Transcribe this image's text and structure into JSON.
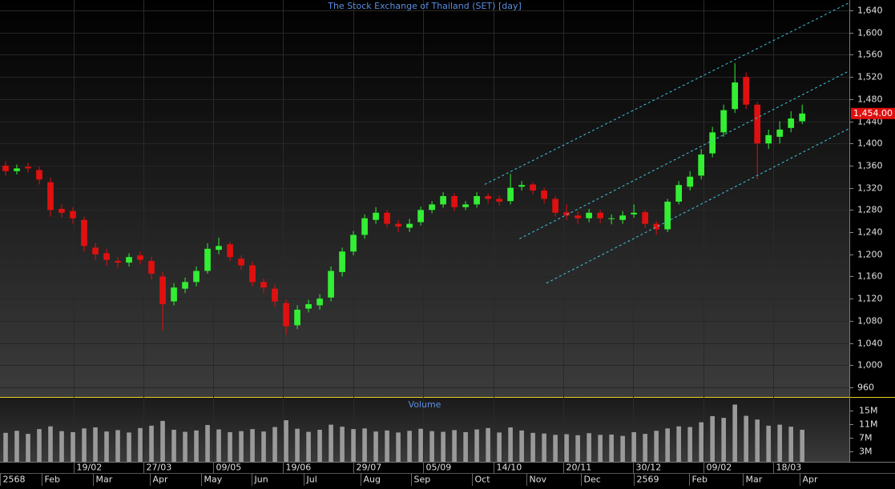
{
  "chart_data": [
    {
      "type": "candlestick",
      "title": "The Stock Exchange of Thailand (SET) [day]",
      "open": [
        1360,
        1350,
        1358,
        1352,
        1330,
        1282,
        1278,
        1262,
        1212,
        1202,
        1188,
        1185,
        1198,
        1188,
        1160,
        1115,
        1138,
        1150,
        1170,
        1208,
        1218,
        1192,
        1180,
        1150,
        1138,
        1112,
        1072,
        1102,
        1108,
        1122,
        1168,
        1205,
        1235,
        1262,
        1275,
        1255,
        1248,
        1258,
        1280,
        1290,
        1305,
        1285,
        1290,
        1305,
        1300,
        1296,
        1322,
        1326,
        1315,
        1300,
        1276,
        1270,
        1265,
        1275,
        1265,
        1262,
        1272,
        1276,
        1255,
        1245,
        1295,
        1322,
        1342,
        1382,
        1420,
        1462,
        1520,
        1470,
        1400,
        1412,
        1428,
        1440
      ],
      "high": [
        1368,
        1362,
        1365,
        1358,
        1338,
        1290,
        1285,
        1268,
        1220,
        1210,
        1195,
        1202,
        1205,
        1195,
        1168,
        1148,
        1158,
        1178,
        1220,
        1230,
        1222,
        1198,
        1186,
        1156,
        1145,
        1118,
        1108,
        1118,
        1128,
        1178,
        1212,
        1242,
        1272,
        1285,
        1280,
        1262,
        1264,
        1286,
        1296,
        1312,
        1310,
        1296,
        1312,
        1310,
        1306,
        1345,
        1332,
        1330,
        1320,
        1305,
        1290,
        1278,
        1282,
        1280,
        1272,
        1278,
        1290,
        1280,
        1260,
        1300,
        1332,
        1350,
        1390,
        1430,
        1470,
        1545,
        1528,
        1475,
        1425,
        1440,
        1458,
        1470
      ],
      "low": [
        1342,
        1344,
        1348,
        1326,
        1268,
        1266,
        1255,
        1205,
        1190,
        1180,
        1176,
        1178,
        1182,
        1155,
        1062,
        1108,
        1130,
        1142,
        1165,
        1200,
        1188,
        1172,
        1142,
        1130,
        1105,
        1055,
        1065,
        1095,
        1100,
        1115,
        1160,
        1198,
        1228,
        1255,
        1248,
        1240,
        1240,
        1252,
        1274,
        1284,
        1278,
        1280,
        1284,
        1292,
        1288,
        1290,
        1315,
        1308,
        1292,
        1268,
        1262,
        1255,
        1258,
        1256,
        1254,
        1255,
        1266,
        1248,
        1235,
        1240,
        1290,
        1315,
        1335,
        1375,
        1412,
        1455,
        1462,
        1335,
        1390,
        1400,
        1420,
        1435
      ],
      "close": [
        1350,
        1355,
        1355,
        1335,
        1280,
        1275,
        1265,
        1215,
        1200,
        1190,
        1185,
        1195,
        1190,
        1165,
        1110,
        1140,
        1150,
        1170,
        1210,
        1215,
        1195,
        1180,
        1150,
        1140,
        1115,
        1070,
        1100,
        1110,
        1120,
        1170,
        1205,
        1235,
        1265,
        1275,
        1255,
        1250,
        1255,
        1280,
        1290,
        1305,
        1285,
        1290,
        1305,
        1300,
        1295,
        1320,
        1325,
        1315,
        1300,
        1275,
        1270,
        1265,
        1275,
        1265,
        1265,
        1270,
        1275,
        1255,
        1245,
        1295,
        1325,
        1340,
        1380,
        1420,
        1460,
        1510,
        1470,
        1400,
        1415,
        1425,
        1445,
        1454
      ],
      "up_color": "#33ee33",
      "down_color": "#e01010",
      "xlim": [
        -0.5,
        75.2
      ],
      "xticks": [
        {
          "value": 6.07,
          "label": "19/02"
        },
        {
          "value": 12.29,
          "label": "27/03"
        },
        {
          "value": 18.5,
          "label": "09/05"
        },
        {
          "value": 24.71,
          "label": "19/06"
        },
        {
          "value": 31.0,
          "label": "29/07"
        },
        {
          "value": 37.21,
          "label": "05/09"
        },
        {
          "value": 43.5,
          "label": "14/10"
        },
        {
          "value": 49.71,
          "label": "20/11"
        },
        {
          "value": 55.93,
          "label": "30/12"
        },
        {
          "value": 62.21,
          "label": "09/02"
        },
        {
          "value": 68.43,
          "label": "18/03"
        }
      ],
      "xticks_month": [
        {
          "value": -0.5,
          "label": "2568"
        },
        {
          "value": 3.21,
          "label": "Feb"
        },
        {
          "value": 7.79,
          "label": "Mar"
        },
        {
          "value": 12.86,
          "label": "Apr"
        },
        {
          "value": 17.43,
          "label": "May"
        },
        {
          "value": 21.93,
          "label": "Jun"
        },
        {
          "value": 26.57,
          "label": "Jul"
        },
        {
          "value": 31.64,
          "label": "Aug"
        },
        {
          "value": 36.14,
          "label": "Sep"
        },
        {
          "value": 41.57,
          "label": "Oct"
        },
        {
          "value": 46.43,
          "label": "Nov"
        },
        {
          "value": 51.29,
          "label": "Dec"
        },
        {
          "value": 56.0,
          "label": "2569"
        },
        {
          "value": 60.93,
          "label": "Feb"
        },
        {
          "value": 65.71,
          "label": "Mar"
        },
        {
          "value": 70.79,
          "label": "Apr"
        }
      ],
      "ylim": [
        942.6,
        1658.8
      ],
      "yticks": [
        {
          "value": 960,
          "label": "960"
        },
        {
          "value": 1000,
          "label": "1,000"
        },
        {
          "value": 1040,
          "label": "1,040"
        },
        {
          "value": 1080,
          "label": "1,080"
        },
        {
          "value": 1120,
          "label": "1,120"
        },
        {
          "value": 1160,
          "label": "1,160"
        },
        {
          "value": 1200,
          "label": "1,200"
        },
        {
          "value": 1240,
          "label": "1,240"
        },
        {
          "value": 1280,
          "label": "1,280"
        },
        {
          "value": 1320,
          "label": "1,320"
        },
        {
          "value": 1360,
          "label": "1,360"
        },
        {
          "value": 1400,
          "label": "1,400"
        },
        {
          "value": 1440,
          "label": "1,440"
        },
        {
          "value": 1480,
          "label": "1,480"
        },
        {
          "value": 1520,
          "label": "1,520"
        },
        {
          "value": 1560,
          "label": "1,560"
        },
        {
          "value": 1600,
          "label": "1,600"
        },
        {
          "value": 1640,
          "label": "1,640"
        }
      ],
      "last_price": {
        "value": 1454,
        "label": "1,454.00"
      },
      "trend_lines": [
        {
          "x": [
            42.7,
            75.2
          ],
          "y": [
            1326,
            1654
          ]
        },
        {
          "x": [
            45.8,
            75.2
          ],
          "y": [
            1228,
            1531
          ]
        },
        {
          "x": [
            48.2,
            75.2
          ],
          "y": [
            1148,
            1427
          ]
        }
      ],
      "trend_color": "#3cc8d8",
      "grid": true
    },
    {
      "type": "bar",
      "title": "Volume",
      "values": [
        8.5,
        9.1,
        8.2,
        9.6,
        10.4,
        9.0,
        8.7,
        9.8,
        10.1,
        8.9,
        9.3,
        8.6,
        9.9,
        10.6,
        12.0,
        9.4,
        8.8,
        9.2,
        10.8,
        9.5,
        8.7,
        9.0,
        9.6,
        8.9,
        10.2,
        12.2,
        9.7,
        8.8,
        9.4,
        10.9,
        10.3,
        9.6,
        9.8,
        8.9,
        9.2,
        8.6,
        9.1,
        9.7,
        9.0,
        8.8,
        9.3,
        8.7,
        9.5,
        9.9,
        8.6,
        10.1,
        9.2,
        8.5,
        8.3,
        7.9,
        8.1,
        7.8,
        8.4,
        7.9,
        8.0,
        7.6,
        8.7,
        8.2,
        9.1,
        9.8,
        10.4,
        10.2,
        11.6,
        13.4,
        12.9,
        16.8,
        13.5,
        12.4,
        10.6,
        10.9,
        10.3,
        9.4
      ],
      "color": "#9a9a9a",
      "ylim": [
        0,
        18.8
      ],
      "yticks": [
        {
          "value": 3,
          "label": "3M"
        },
        {
          "value": 7,
          "label": "7M"
        },
        {
          "value": 11,
          "label": "11M"
        },
        {
          "value": 15,
          "label": "15M"
        }
      ]
    }
  ]
}
